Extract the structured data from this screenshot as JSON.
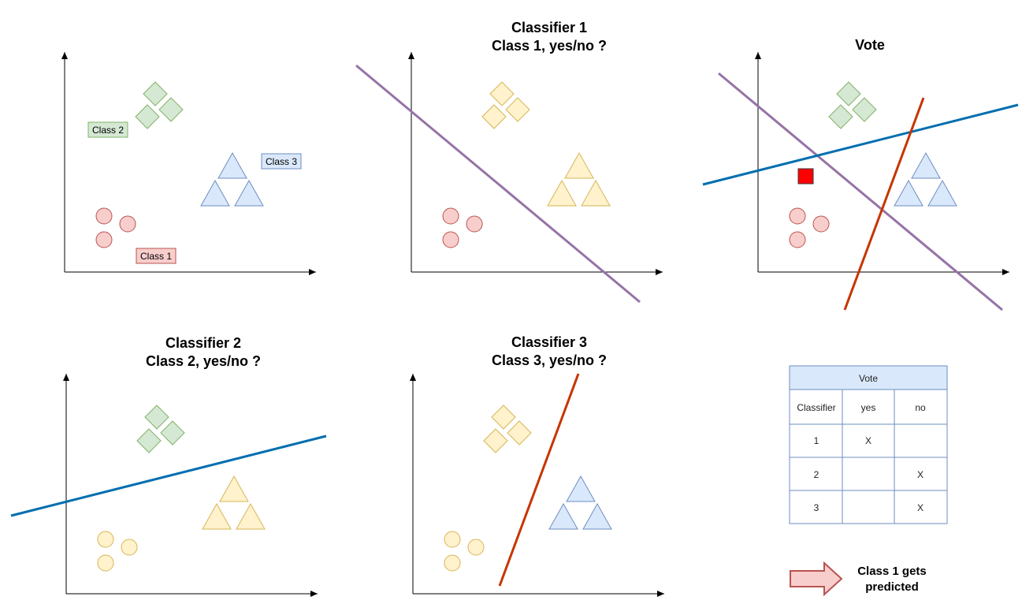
{
  "colors": {
    "class1": "#f8cecc",
    "class1_stroke": "#b85450",
    "class2": "#d5e8d4",
    "class2_stroke": "#82b366",
    "class3": "#dae8fc",
    "class3_stroke": "#6c8ebf",
    "neutral": "#fff2cc",
    "neutral_stroke": "#d6b656",
    "classifier1_line": "#9673a6",
    "classifier2_line": "#006eaf",
    "classifier3_line": "#c73500",
    "query_point": "#ff0000",
    "table_header": "#dae8fc",
    "arrow_fill": "#f8cecc",
    "arrow_stroke": "#b85450"
  },
  "panels": {
    "data": {
      "labels": {
        "class1": "Class 1",
        "class2": "Class 2",
        "class3": "Class 3"
      }
    },
    "classifier1": {
      "title_line1": "Classifier 1",
      "title_line2": "Class 1, yes/no ?"
    },
    "classifier2": {
      "title_line1": "Classifier 2",
      "title_line2": "Class 2, yes/no ?"
    },
    "classifier3": {
      "title_line1": "Classifier 3",
      "title_line2": "Class 3, yes/no ?"
    },
    "vote": {
      "title": "Vote"
    }
  },
  "vote_table": {
    "title": "Vote",
    "headers": [
      "Classifier",
      "yes",
      "no"
    ],
    "rows": [
      [
        "1",
        "X",
        ""
      ],
      [
        "2",
        "",
        "X"
      ],
      [
        "3",
        "",
        "X"
      ]
    ]
  },
  "result": {
    "line1": "Class 1 gets",
    "line2": "predicted"
  }
}
